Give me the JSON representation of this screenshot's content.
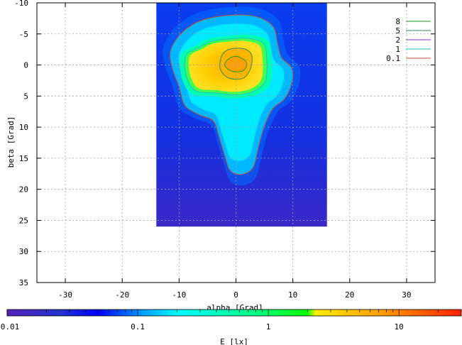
{
  "chart_data": {
    "type": "heatmap",
    "title": "",
    "xlabel": "alpha [Grad]",
    "ylabel": "beta [Grad]",
    "xlim": [
      -35,
      35
    ],
    "ylim": [
      35,
      -10
    ],
    "x_ticks": [
      -30,
      -20,
      -10,
      0,
      10,
      20,
      30
    ],
    "y_ticks": [
      -10,
      -5,
      0,
      5,
      10,
      15,
      20,
      25,
      30,
      35
    ],
    "grid": true,
    "legend_placement": "top-right",
    "data_extent": {
      "alpha": [
        -14,
        16
      ],
      "beta": [
        -10,
        26
      ]
    },
    "peak": {
      "alpha": 0,
      "beta": 0,
      "value": 10
    },
    "contours": [
      {
        "level": "8",
        "color": "#1a9e1a",
        "path": [
          [
            0,
            -1.4
          ],
          [
            1.5,
            -0.8
          ],
          [
            1.9,
            0
          ],
          [
            1.3,
            0.9
          ],
          [
            0,
            1.1
          ],
          [
            -1.2,
            0.8
          ],
          [
            -2,
            0
          ],
          [
            -1.4,
            -0.9
          ]
        ]
      },
      {
        "level": "5",
        "color": "#2e8b57",
        "path": [
          [
            0,
            -2.7
          ],
          [
            1.8,
            -2.5
          ],
          [
            2.8,
            -1.5
          ],
          [
            2.6,
            0.5
          ],
          [
            1.5,
            2
          ],
          [
            0,
            2.3
          ],
          [
            -1.7,
            1.9
          ],
          [
            -2.8,
            0.5
          ],
          [
            -2.5,
            -1.5
          ],
          [
            -1.5,
            -2.4
          ]
        ]
      },
      {
        "level": "2",
        "color": "#8a2be2",
        "path": []
      },
      {
        "level": "1",
        "color": "#20c0c0",
        "path": [
          [
            -1,
            -4.2
          ],
          [
            2,
            -4.3
          ],
          [
            4.8,
            -3.5
          ],
          [
            5.4,
            -1
          ],
          [
            5.2,
            2.5
          ],
          [
            3.2,
            4.2
          ],
          [
            0,
            4.8
          ],
          [
            -3.5,
            4.5
          ],
          [
            -7,
            4.2
          ],
          [
            -8.5,
            2.4
          ],
          [
            -9,
            0
          ],
          [
            -8.6,
            -1.8
          ],
          [
            -6.5,
            -2.8
          ],
          [
            -4.3,
            -3.8
          ]
        ]
      },
      {
        "level": "0.1",
        "color": "#c05030",
        "path": [
          [
            -6,
            -7.2
          ],
          [
            -1,
            -8
          ],
          [
            3.5,
            -7.8
          ],
          [
            6.5,
            -6.2
          ],
          [
            7.3,
            -3.5
          ],
          [
            8,
            -1.2
          ],
          [
            9.8,
            0.5
          ],
          [
            9.8,
            3
          ],
          [
            8.5,
            5.5
          ],
          [
            6.5,
            7
          ],
          [
            5,
            9.8
          ],
          [
            4,
            13
          ],
          [
            3,
            16.5
          ],
          [
            1,
            17.6
          ],
          [
            -1,
            17
          ],
          [
            -2,
            14.5
          ],
          [
            -3,
            11.5
          ],
          [
            -4,
            9
          ],
          [
            -6.5,
            8
          ],
          [
            -9,
            6.5
          ],
          [
            -10,
            3.5
          ],
          [
            -11.2,
            0.5
          ],
          [
            -11.5,
            -2.3
          ],
          [
            -9.5,
            -5.2
          ]
        ]
      }
    ],
    "colorbar": {
      "label": "E [lx]",
      "scale": "log",
      "range": [
        0.01,
        30
      ],
      "ticks": [
        "0.01",
        "0.1",
        "1",
        "10"
      ]
    }
  }
}
